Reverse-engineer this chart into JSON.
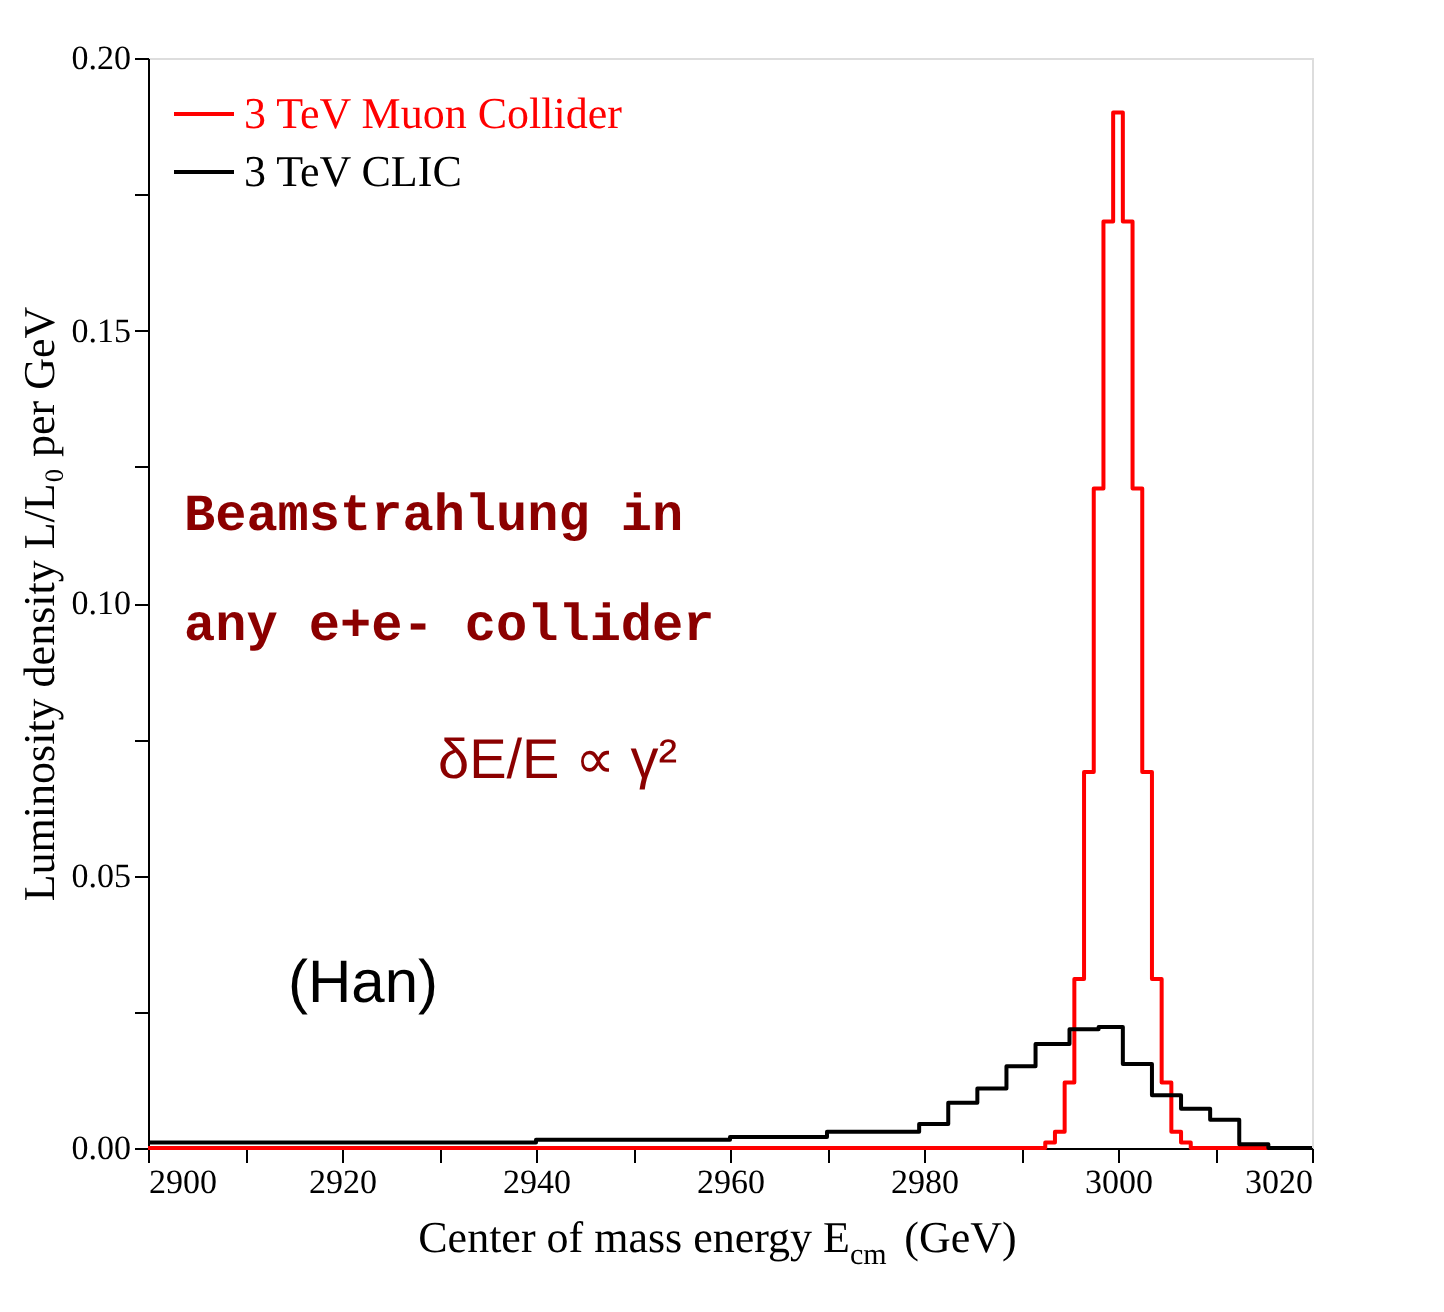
{
  "chart_data": {
    "type": "step",
    "xlabel": "Center of mass energy E$_{cm}$ (GeV)",
    "ylabel": "Luminosity density L/L₀ per GeV",
    "xlim": [
      2900,
      3020
    ],
    "xticks": [
      2900,
      {
        "value": 2910,
        "label": null
      },
      2920,
      {
        "value": 2930,
        "label": null
      },
      2940,
      {
        "value": 2950,
        "label": null
      },
      2960,
      {
        "value": 2970,
        "label": null
      },
      2980,
      {
        "value": 2990,
        "label": null
      },
      3000,
      {
        "value": 3010,
        "label": null
      },
      3020
    ],
    "ylim": [
      0,
      0.2
    ],
    "yticks": [
      {
        "value": 0,
        "label": "0.00"
      },
      {
        "value": 0.025,
        "label": null
      },
      0.05,
      {
        "value": 0.075,
        "label": null
      },
      {
        "value": 0.1,
        "label": "0.10"
      },
      {
        "value": 0.125,
        "label": null
      },
      0.15,
      {
        "value": 0.175,
        "label": null
      },
      {
        "value": 0.2,
        "label": "0.20"
      }
    ],
    "legend": "top left",
    "grid": false,
    "series": [
      {
        "name": "3 TeV Muon Collider",
        "color": "#ff0000",
        "x": [
          2900,
          2992.5,
          2993.5,
          2994.5,
          2995.5,
          2996.5,
          2997.5,
          2998.5,
          2999.5,
          3000.5,
          3001.5,
          3002.5,
          3003.5,
          3004.5,
          3005.5,
          3006.5,
          3007.5,
          3020
        ],
        "values": [
          0,
          0.001,
          0.003,
          0.012,
          0.031,
          0.069,
          0.121,
          0.17,
          0.19,
          0.17,
          0.121,
          0.069,
          0.031,
          0.012,
          0.003,
          0.001,
          0,
          0
        ]
      },
      {
        "name": "3 TeV CLIC",
        "color": "#000000",
        "x": [
          2900,
          2940,
          2960,
          2970,
          2979.5,
          2982.5,
          2985.5,
          2988.5,
          2991.5,
          2995,
          2998,
          3000.5,
          3003.5,
          3006.5,
          3009.5,
          3012.5,
          3015.5,
          3020
        ],
        "values": [
          0.001,
          0.0015,
          0.002,
          0.003,
          0.0044,
          0.0083,
          0.0109,
          0.015,
          0.0191,
          0.0218,
          0.0222,
          0.0154,
          0.0097,
          0.0072,
          0.0052,
          0.0007,
          0,
          0
        ]
      }
    ],
    "annotations": [
      "Beamstrahlung in",
      "any e+e- collider",
      "δE/E ∝ γ²",
      "(Han)"
    ]
  }
}
